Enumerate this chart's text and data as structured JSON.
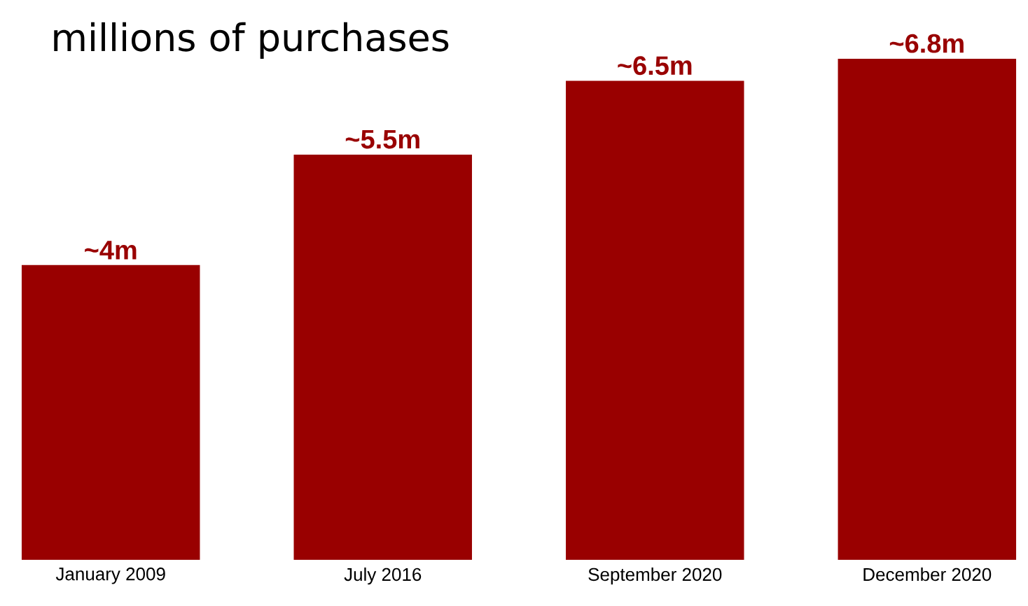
{
  "chart_data": {
    "type": "bar",
    "title": "millions of purchases",
    "categories": [
      "January 2009",
      "July 2016",
      "September 2020",
      "December 2020"
    ],
    "values": [
      4,
      5.5,
      6.5,
      6.8
    ],
    "value_labels": [
      "~4m",
      "~5.5m",
      "~6.5m",
      "~6.8m"
    ],
    "color": "#990000"
  }
}
